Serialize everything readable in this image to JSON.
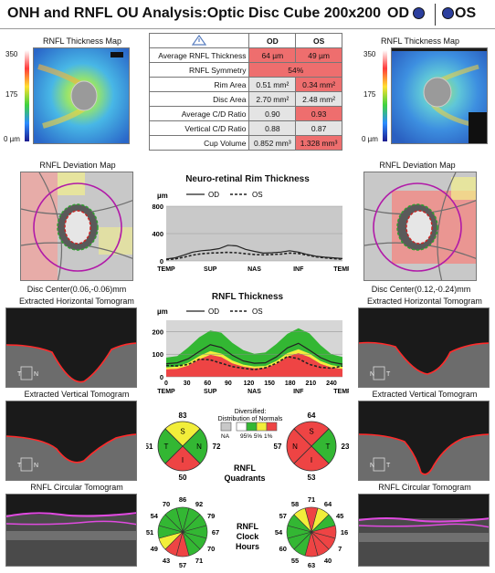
{
  "header": {
    "title": "ONH and RNFL OU Analysis:Optic Disc Cube 200x200",
    "od_label": "OD",
    "os_label": "OS"
  },
  "colors": {
    "red": "#ee6e6e",
    "gray": "#e4e4e4",
    "green": "#33b733",
    "yellow": "#f2ee3a",
    "od_line": "#222222",
    "eye_blue": "#2c3f9e"
  },
  "left": {
    "thickness_map_title": "RNFL Thickness Map",
    "deviation_map_title": "RNFL Deviation Map",
    "disc_center": "Disc Center(0.06,-0.06)mm",
    "horizontal_title": "Extracted Horizontal Tomogram",
    "vertical_title": "Extracted Vertical Tomogram",
    "circular_title": "RNFL Circular Tomogram",
    "h_marks": [
      "T",
      "N"
    ],
    "v_marks": [
      "T",
      "N"
    ]
  },
  "right": {
    "thickness_map_title": "RNFL Thickness Map",
    "deviation_map_title": "RNFL Deviation Map",
    "disc_center": "Disc Center(0.12,-0.24)mm",
    "horizontal_title": "Extracted Horizontal Tomogram",
    "vertical_title": "Extracted Vertical Tomogram",
    "circular_title": "RNFL Circular Tomogram",
    "h_marks": [
      "N",
      "T"
    ],
    "v_marks": [
      "N",
      "T"
    ]
  },
  "scale": {
    "top": "350",
    "mid": "175",
    "bottom": "0 µm"
  },
  "table": {
    "headers": [
      "",
      "OD",
      "OS"
    ],
    "rows": [
      {
        "label": "Average RNFL Thickness",
        "od": "64 µm",
        "os": "49 µm"
      },
      {
        "label": "RNFL Symmetry",
        "both": "54%"
      },
      {
        "label": "Rim Area",
        "od": "0.51 mm²",
        "os": "0.34 mm²"
      },
      {
        "label": "Disc Area",
        "od": "2.70 mm²",
        "os": "2.48 mm²"
      },
      {
        "label": "Average C/D Ratio",
        "od": "0.90",
        "os": "0.93"
      },
      {
        "label": "Vertical C/D Ratio",
        "od": "0.88",
        "os": "0.87"
      },
      {
        "label": "Cup Volume",
        "od": "0.852 mm³",
        "os": "1.328 mm³"
      }
    ]
  },
  "rim_chart": {
    "title": "Neuro-retinal Rim Thickness",
    "unit": "µm",
    "legend_od": "OD",
    "legend_os": "OS",
    "yticks": [
      "800",
      "400",
      "0"
    ],
    "xticks": [
      "TEMP",
      "SUP",
      "NAS",
      "INF",
      "TEMP"
    ]
  },
  "rnfl_chart": {
    "title": "RNFL Thickness",
    "unit": "µm",
    "legend_od": "OD",
    "legend_os": "OS",
    "yticks": [
      "200",
      "100",
      "0"
    ],
    "xticks": [
      "0",
      "30",
      "60",
      "90",
      "120",
      "150",
      "180",
      "210",
      "240"
    ],
    "xticks2": [
      "TEMP",
      "SUP",
      "NAS",
      "INF",
      "TEMP"
    ]
  },
  "chart_data": [
    {
      "type": "line",
      "title": "Neuro-retinal Rim Thickness",
      "ylabel": "µm",
      "ylim": [
        0,
        800
      ],
      "x": [
        0,
        5,
        10,
        15,
        20,
        25,
        30,
        35,
        40,
        45,
        50,
        55,
        60,
        65,
        70,
        75,
        80,
        85,
        90,
        95,
        100
      ],
      "series": [
        {
          "name": "OD",
          "values": [
            30,
            45,
            85,
            130,
            150,
            160,
            180,
            230,
            220,
            170,
            140,
            115,
            120,
            130,
            150,
            130,
            95,
            70,
            55,
            45,
            35
          ]
        },
        {
          "name": "OS",
          "values": [
            20,
            30,
            55,
            85,
            105,
            115,
            120,
            125,
            120,
            105,
            95,
            90,
            95,
            100,
            115,
            110,
            85,
            60,
            45,
            35,
            25
          ]
        }
      ],
      "xticks": [
        "TEMP",
        "SUP",
        "NAS",
        "INF",
        "TEMP"
      ]
    },
    {
      "type": "line",
      "title": "RNFL Thickness",
      "ylabel": "µm",
      "ylim": [
        0,
        250
      ],
      "xlim": [
        0,
        256
      ],
      "x": [
        0,
        16,
        32,
        48,
        64,
        80,
        96,
        112,
        128,
        144,
        160,
        176,
        192,
        208,
        224,
        240,
        256
      ],
      "series": [
        {
          "name": "OD",
          "values": [
            58,
            62,
            80,
            112,
            142,
            130,
            95,
            70,
            60,
            62,
            88,
            128,
            148,
            118,
            85,
            65,
            56
          ]
        },
        {
          "name": "OS",
          "values": [
            50,
            48,
            55,
            78,
            75,
            60,
            45,
            38,
            32,
            40,
            60,
            90,
            80,
            55,
            42,
            38,
            48
          ]
        }
      ],
      "normal_bands": {
        "x": [
          0,
          16,
          32,
          48,
          64,
          80,
          96,
          112,
          128,
          144,
          160,
          176,
          192,
          208,
          224,
          240,
          256
        ],
        "p1": [
          33,
          36,
          50,
          78,
          98,
          88,
          60,
          45,
          38,
          40,
          58,
          90,
          105,
          88,
          58,
          42,
          35
        ],
        "p5": [
          42,
          45,
          62,
          92,
          114,
          103,
          72,
          54,
          46,
          48,
          70,
          105,
          122,
          103,
          70,
          52,
          44
        ],
        "p95": [
          85,
          92,
          130,
          175,
          205,
          195,
          150,
          118,
          102,
          108,
          145,
          190,
          215,
          192,
          140,
          100,
          88
        ]
      },
      "xticks": [
        "0",
        "30",
        "60",
        "90",
        "120",
        "150",
        "180",
        "210",
        "240"
      ],
      "xticks2": [
        "TEMP",
        "SUP",
        "NAS",
        "INF",
        "TEMP"
      ]
    }
  ],
  "quadrants": {
    "title_line1": "RNFL",
    "title_line2": "Quadrants",
    "od": {
      "top": "83",
      "left": "51",
      "right": "72",
      "bottom": "50",
      "labels": {
        "s": "S",
        "t": "T",
        "n": "N",
        "i": "I"
      },
      "colors": {
        "s": "#f2ee3a",
        "t": "#33b733",
        "n": "#33b733",
        "i": "#ee4444"
      }
    },
    "os": {
      "top": "64",
      "left": "57",
      "right": "23",
      "bottom": "53",
      "labels": {
        "s": "S",
        "t": "T",
        "n": "N",
        "i": "I"
      },
      "colors": {
        "s": "#ee4444",
        "t": "#ee4444",
        "n": "#33b733",
        "i": "#ee4444"
      }
    }
  },
  "legend": {
    "title1": "Diversified:",
    "title2": "Distribution of Normals",
    "na": "NA",
    "pcts": "95% 5% 1%"
  },
  "clock_hours": {
    "title_line1": "RNFL",
    "title_line2": "Clock",
    "title_line3": "Hours",
    "od": {
      "values": [
        "86",
        "92",
        "79",
        "67",
        "70",
        "71",
        "57",
        "43",
        "49",
        "51",
        "54",
        "70"
      ],
      "colors": [
        "#33b733",
        "#33b733",
        "#33b733",
        "#33b733",
        "#33b733",
        "#33b733",
        "#ee4444",
        "#ee4444",
        "#f2ee3a",
        "#33b733",
        "#33b733",
        "#33b733"
      ]
    },
    "os": {
      "values": [
        "71",
        "64",
        "45",
        "16",
        "7",
        "40",
        "63",
        "55",
        "60",
        "54",
        "57",
        "58"
      ],
      "colors": [
        "#ee4444",
        "#f2ee3a",
        "#33b733",
        "#ee4444",
        "#ee4444",
        "#ee4444",
        "#ee4444",
        "#33b733",
        "#33b733",
        "#33b733",
        "#33b733",
        "#f2ee3a"
      ]
    }
  }
}
